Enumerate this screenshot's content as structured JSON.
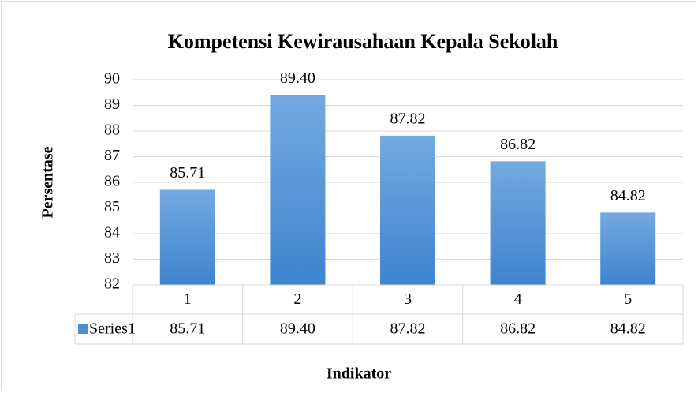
{
  "chart_data": {
    "type": "bar",
    "title": "Kompetensi Kewirausahaan Kepala Sekolah",
    "y_label": "Persentase",
    "x_label": "Indikator",
    "categories": [
      "1",
      "2",
      "3",
      "4",
      "5"
    ],
    "series": [
      {
        "name": "Series1",
        "color": "#4a8fd6",
        "values": [
          85.71,
          89.4,
          87.82,
          86.82,
          84.82
        ],
        "value_labels": [
          "85.71",
          "89.40",
          "87.82",
          "86.82",
          "84.82"
        ]
      }
    ],
    "ylim": [
      82,
      90
    ],
    "yticks": [
      82,
      83,
      84,
      85,
      86,
      87,
      88,
      89,
      90
    ],
    "grid": true,
    "data_table": true
  }
}
